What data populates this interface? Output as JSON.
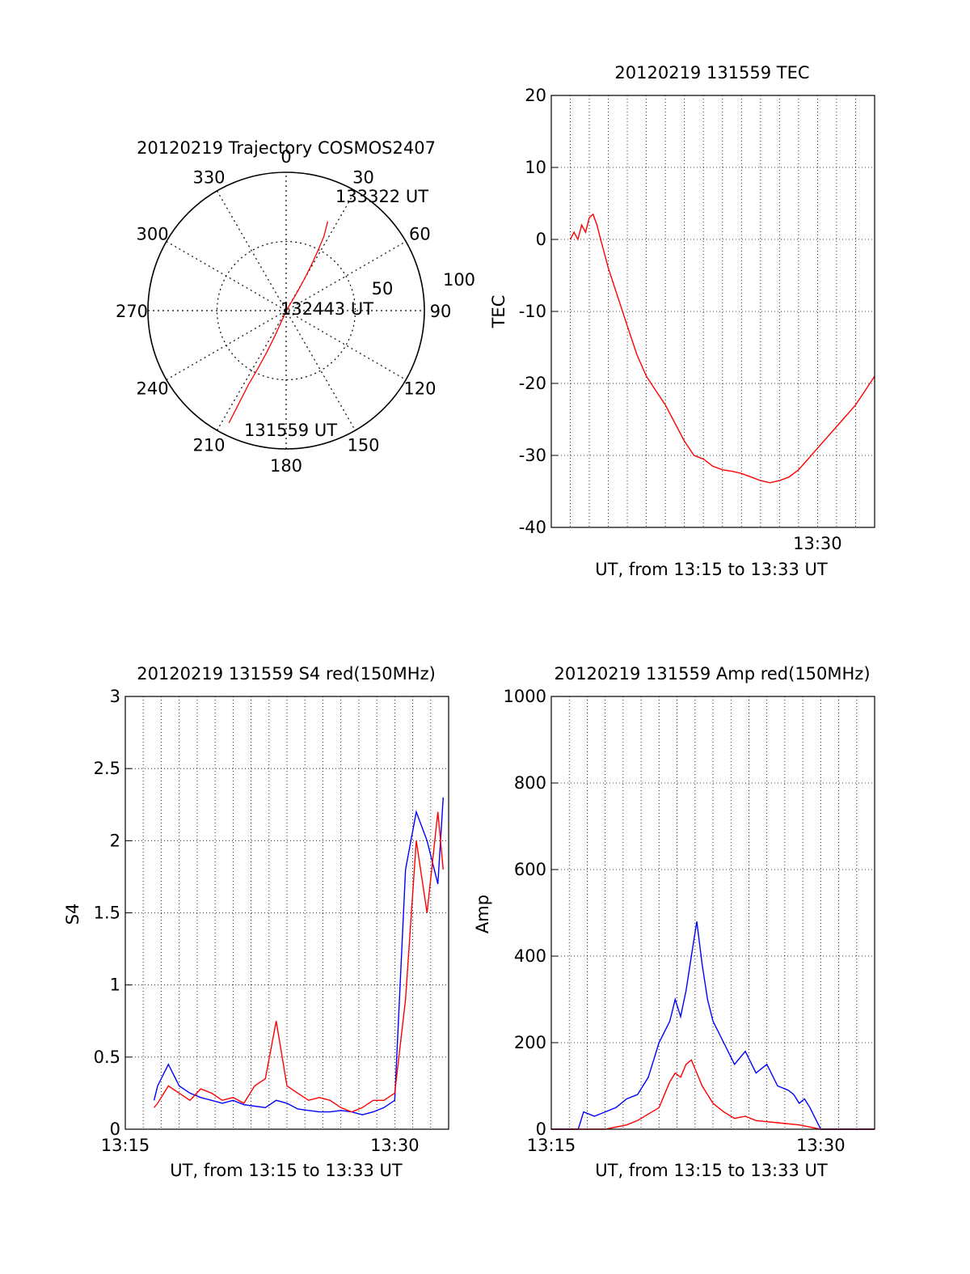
{
  "colors": {
    "red": "#ff0000",
    "blue": "#0000ff",
    "axis": "#000000",
    "grid": "#000000"
  },
  "chart_data": [
    {
      "id": "trajectory",
      "type": "polar",
      "title": "20120219 Trajectory COSMOS2407",
      "azimuth_labels": [
        "0",
        "30",
        "60",
        "90",
        "120",
        "150",
        "180",
        "210",
        "240",
        "270",
        "300",
        "330"
      ],
      "radial_labels": [
        "50",
        "100"
      ],
      "grid": true,
      "points_label": [
        {
          "text": "133322 UT",
          "el": 36,
          "az": 28
        },
        {
          "text": "132443 UT",
          "el": 90,
          "az": 0
        },
        {
          "text": "131559 UT",
          "el": 9,
          "az": 207
        }
      ],
      "track": [
        {
          "el": 26,
          "az": 25
        },
        {
          "el": 36,
          "az": 27
        },
        {
          "el": 46,
          "az": 28
        },
        {
          "el": 56,
          "az": 29
        },
        {
          "el": 66,
          "az": 30
        },
        {
          "el": 76,
          "az": 31
        },
        {
          "el": 88,
          "az": 33
        },
        {
          "el": 84,
          "az": 203
        },
        {
          "el": 72,
          "az": 204
        },
        {
          "el": 60,
          "az": 205
        },
        {
          "el": 48,
          "az": 206
        },
        {
          "el": 36,
          "az": 207
        },
        {
          "el": 24,
          "az": 207
        },
        {
          "el": 8,
          "az": 207
        }
      ]
    },
    {
      "id": "tec",
      "type": "line",
      "title": "20120219 131559 TEC",
      "xlabel": "UT, from 13:15 to 13:33 UT",
      "ylabel": "TEC",
      "xlim": [
        13.2667,
        13.55
      ],
      "ylim": [
        -40,
        20
      ],
      "yticks": [
        -40,
        -30,
        -20,
        -10,
        0,
        10,
        20
      ],
      "xticks": [
        {
          "value": 13.5,
          "label": "13:30"
        }
      ],
      "grid": true,
      "series": [
        {
          "color": "red",
          "x": [
            13.2833,
            13.2867,
            13.29,
            13.2933,
            13.2967,
            13.3,
            13.3033,
            13.3067,
            13.31,
            13.3167,
            13.325,
            13.3333,
            13.3417,
            13.35,
            13.3583,
            13.3667,
            13.375,
            13.3833,
            13.3917,
            13.4,
            13.4083,
            13.4167,
            13.425,
            13.4333,
            13.4417,
            13.45,
            13.4583,
            13.4667,
            13.475,
            13.4833,
            13.4917,
            13.5,
            13.5083,
            13.5167,
            13.525,
            13.5333,
            13.5417,
            13.55
          ],
          "y": [
            0,
            1,
            0,
            2,
            1,
            3,
            3.5,
            2,
            0,
            -4,
            -8,
            -12,
            -16,
            -19,
            -21,
            -23,
            -25.5,
            -28,
            -30,
            -30.5,
            -31.5,
            -32,
            -32.2,
            -32.5,
            -33,
            -33.5,
            -33.8,
            -33.5,
            -33,
            -32,
            -30.5,
            -29,
            -27.5,
            -26,
            -24.5,
            -23,
            -21,
            -19
          ]
        }
      ]
    },
    {
      "id": "s4",
      "type": "line",
      "title": "20120219 131559 S4 red(150MHz)",
      "xlabel": "UT, from 13:15 to 13:33 UT",
      "ylabel": "S4",
      "xlim": [
        13.25,
        13.55
      ],
      "ylim": [
        0,
        3
      ],
      "yticks": [
        0,
        0.5,
        1,
        1.5,
        2,
        2.5,
        3
      ],
      "ytick_labels": [
        "0",
        "0.5",
        "1",
        "1.5",
        "2",
        "2.5",
        "3"
      ],
      "xticks": [
        {
          "value": 13.25,
          "label": "13:15"
        },
        {
          "value": 13.5,
          "label": "13:30"
        }
      ],
      "grid": true,
      "series": [
        {
          "color": "blue",
          "x": [
            13.2767,
            13.28,
            13.29,
            13.3,
            13.31,
            13.32,
            13.33,
            13.34,
            13.35,
            13.36,
            13.37,
            13.38,
            13.39,
            13.4,
            13.41,
            13.42,
            13.43,
            13.44,
            13.45,
            13.46,
            13.47,
            13.48,
            13.49,
            13.5,
            13.51,
            13.52,
            13.53,
            13.54,
            13.545
          ],
          "y": [
            0.2,
            0.3,
            0.45,
            0.3,
            0.25,
            0.22,
            0.2,
            0.18,
            0.2,
            0.17,
            0.16,
            0.15,
            0.2,
            0.18,
            0.14,
            0.13,
            0.12,
            0.12,
            0.13,
            0.12,
            0.1,
            0.12,
            0.15,
            0.2,
            1.8,
            2.2,
            2.0,
            1.7,
            2.3
          ]
        },
        {
          "color": "red",
          "x": [
            13.2767,
            13.28,
            13.29,
            13.3,
            13.31,
            13.32,
            13.33,
            13.34,
            13.35,
            13.36,
            13.37,
            13.38,
            13.39,
            13.4,
            13.41,
            13.42,
            13.43,
            13.44,
            13.45,
            13.46,
            13.47,
            13.48,
            13.49,
            13.5,
            13.51,
            13.52,
            13.53,
            13.54,
            13.545
          ],
          "y": [
            0.15,
            0.18,
            0.3,
            0.25,
            0.2,
            0.28,
            0.25,
            0.2,
            0.22,
            0.18,
            0.3,
            0.35,
            0.75,
            0.3,
            0.25,
            0.2,
            0.22,
            0.2,
            0.15,
            0.12,
            0.15,
            0.2,
            0.2,
            0.25,
            0.9,
            2.0,
            1.5,
            2.2,
            1.8
          ]
        }
      ]
    },
    {
      "id": "amp",
      "type": "line",
      "title": "20120219 131559 Amp red(150MHz)",
      "xlabel": "UT, from 13:15 to 13:33 UT",
      "ylabel": "Amp",
      "xlim": [
        13.25,
        13.55
      ],
      "ylim": [
        0,
        1000
      ],
      "yticks": [
        0,
        200,
        400,
        600,
        800,
        1000
      ],
      "xticks": [
        {
          "value": 13.25,
          "label": "13:15"
        },
        {
          "value": 13.5,
          "label": "13:30"
        }
      ],
      "grid": true,
      "series": [
        {
          "color": "blue",
          "x": [
            13.25,
            13.275,
            13.28,
            13.29,
            13.3,
            13.31,
            13.32,
            13.33,
            13.34,
            13.35,
            13.36,
            13.365,
            13.37,
            13.375,
            13.38,
            13.385,
            13.39,
            13.395,
            13.4,
            13.41,
            13.42,
            13.43,
            13.44,
            13.45,
            13.46,
            13.47,
            13.475,
            13.48,
            13.485,
            13.49,
            13.5,
            13.52,
            13.55
          ],
          "y": [
            0,
            0,
            40,
            30,
            40,
            50,
            70,
            80,
            120,
            200,
            250,
            300,
            260,
            320,
            400,
            480,
            380,
            300,
            250,
            200,
            150,
            180,
            130,
            150,
            100,
            90,
            80,
            60,
            70,
            50,
            0,
            0,
            0
          ]
        },
        {
          "color": "red",
          "x": [
            13.25,
            13.3,
            13.32,
            13.33,
            13.34,
            13.35,
            13.355,
            13.36,
            13.365,
            13.37,
            13.375,
            13.38,
            13.385,
            13.39,
            13.4,
            13.41,
            13.42,
            13.43,
            13.44,
            13.46,
            13.48,
            13.49,
            13.5,
            13.55
          ],
          "y": [
            0,
            0,
            10,
            20,
            35,
            50,
            80,
            110,
            130,
            120,
            150,
            160,
            130,
            100,
            60,
            40,
            25,
            30,
            20,
            15,
            10,
            5,
            0,
            0
          ]
        }
      ]
    }
  ]
}
